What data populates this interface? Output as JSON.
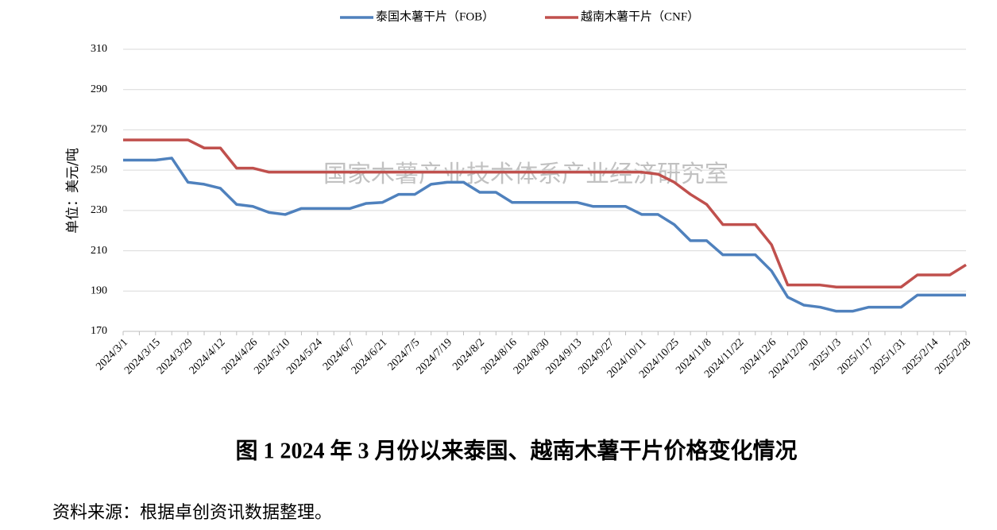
{
  "chart_data": {
    "type": "line",
    "title": "图 1   2024 年 3 月份以来泰国、越南木薯干片价格变化情况",
    "y_label": "单位：美元/吨",
    "annotation": "国家木薯产业技术体系产业经济研究室",
    "source": "资料来源：根据卓创资讯数据整理。",
    "categories": [
      "2024/3/1",
      null,
      "2024/3/15",
      null,
      "2024/3/29",
      null,
      "2024/4/12",
      null,
      "2024/4/26",
      null,
      "2024/5/10",
      null,
      "2024/5/24",
      null,
      "2024/6/7",
      null,
      "2024/6/21",
      null,
      "2024/7/5",
      null,
      "2024/7/19",
      null,
      "2024/8/2",
      null,
      "2024/8/16",
      null,
      "2024/8/30",
      null,
      "2024/9/13",
      null,
      "2024/9/27",
      null,
      "2024/10/11",
      null,
      "2024/10/25",
      null,
      "2024/11/8",
      null,
      "2024/11/22",
      null,
      "2024/12/6",
      null,
      "2024/12/20",
      null,
      "2025/1/3",
      null,
      "2025/1/17",
      null,
      "2025/1/31",
      null,
      "2025/2/14",
      null,
      "2025/2/28"
    ],
    "series": [
      {
        "name": "泰国木薯干片（FOB）",
        "color": "#4f81bd",
        "values": [
          255,
          255,
          255,
          256,
          244,
          243,
          241,
          233,
          232,
          229,
          228,
          231,
          231,
          231,
          231,
          233.5,
          234,
          238,
          238,
          243,
          244,
          244,
          239,
          239,
          234,
          234,
          234,
          234,
          234,
          232,
          232,
          232,
          228,
          228,
          223,
          215,
          215,
          208,
          208,
          208,
          200,
          187,
          183,
          182,
          180,
          180,
          182,
          182,
          182,
          188,
          188,
          188,
          188
        ]
      },
      {
        "name": "越南木薯干片（CNF）",
        "color": "#c0504d",
        "values": [
          265,
          265,
          265,
          265,
          265,
          261,
          261,
          251,
          251,
          249,
          249,
          249,
          249,
          249,
          249,
          249,
          249,
          249,
          249,
          249,
          249,
          249,
          249,
          249,
          249,
          249,
          249,
          249,
          249,
          249,
          249,
          249,
          249,
          248,
          244,
          238,
          233,
          223,
          223,
          223,
          213,
          193,
          193,
          193,
          192,
          192,
          192,
          192,
          192,
          198,
          198,
          198,
          203
        ]
      }
    ],
    "ylim": [
      170,
      310
    ],
    "yticks": [
      170,
      190,
      210,
      230,
      250,
      270,
      290,
      310
    ],
    "grid": true,
    "legend": "top"
  }
}
